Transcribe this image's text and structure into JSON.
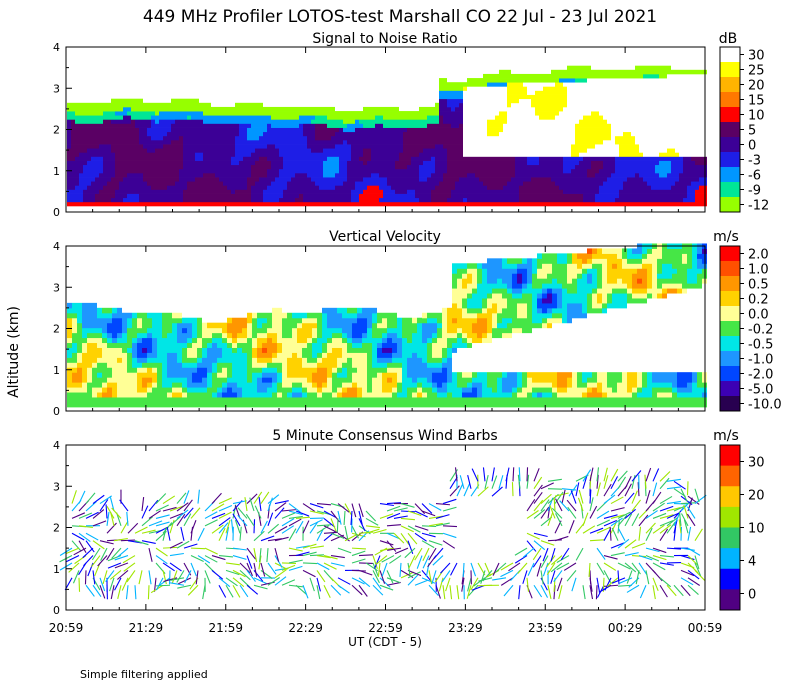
{
  "title": "449 MHz Profiler LOTOS-test Marshall CO 22 Jul - 23 Jul 2021",
  "ylabel": "Altitude (km)",
  "xlabel": "UT  (CDT - 5)",
  "footnote": "Simple filtering applied",
  "x_ticks": [
    "20:59",
    "21:29",
    "21:59",
    "22:29",
    "22:59",
    "23:29",
    "23:59",
    "00:29",
    "00:59"
  ],
  "y_ticks": [
    "0",
    "1",
    "2",
    "3",
    "4"
  ],
  "chart_data": [
    {
      "type": "heatmap",
      "title": "Signal to Noise Ratio",
      "units": "dB",
      "xlim": [
        "20:59",
        "00:59"
      ],
      "ylim": [
        0,
        4
      ],
      "colorbar": {
        "labels": [
          "30",
          "25",
          "20",
          "15",
          "10",
          "5",
          "0",
          "-3",
          "-6",
          "-9",
          "-12"
        ],
        "colors": [
          "#ffffff",
          "#ffff00",
          "#ffb400",
          "#ff7800",
          "#ff0000",
          "#5a0064",
          "#3c0096",
          "#1e1ee6",
          "#0096ff",
          "#00e696",
          "#96ff00"
        ]
      },
      "description_regions": [
        {
          "x0": 0,
          "x1": 0.6,
          "y0": 0.2,
          "y1": 2.7,
          "level": "0"
        },
        {
          "x0": 0.6,
          "x1": 1.0,
          "y0": 0.2,
          "y1": 3.2,
          "level": "30"
        }
      ]
    },
    {
      "type": "heatmap",
      "title": "Vertical Velocity",
      "units": "m/s",
      "xlim": [
        "20:59",
        "00:59"
      ],
      "ylim": [
        0,
        4
      ],
      "colorbar": {
        "labels": [
          "2.0",
          "1.0",
          "0.5",
          "0.2",
          "0.0",
          "-0.2",
          "-0.5",
          "-1.0",
          "-2.0",
          "-5.0",
          "-10.0"
        ],
        "colors": [
          "#ff0000",
          "#ff5000",
          "#ff9600",
          "#ffd200",
          "#ffff96",
          "#46e646",
          "#00e6e6",
          "#1e96ff",
          "#0046ff",
          "#3c00b4",
          "#280050"
        ]
      }
    },
    {
      "type": "scatter",
      "title": "5 Minute Consensus Wind Barbs",
      "units": "m/s",
      "xlim": [
        "20:59",
        "00:59"
      ],
      "ylim": [
        0,
        4
      ],
      "colorbar": {
        "labels": [
          "30",
          "20",
          "10",
          "4",
          "0"
        ],
        "colors": [
          "#ff0000",
          "#ff6400",
          "#ffc800",
          "#a0e600",
          "#32c864",
          "#00b4ff",
          "#0000ff",
          "#500082"
        ]
      }
    }
  ]
}
